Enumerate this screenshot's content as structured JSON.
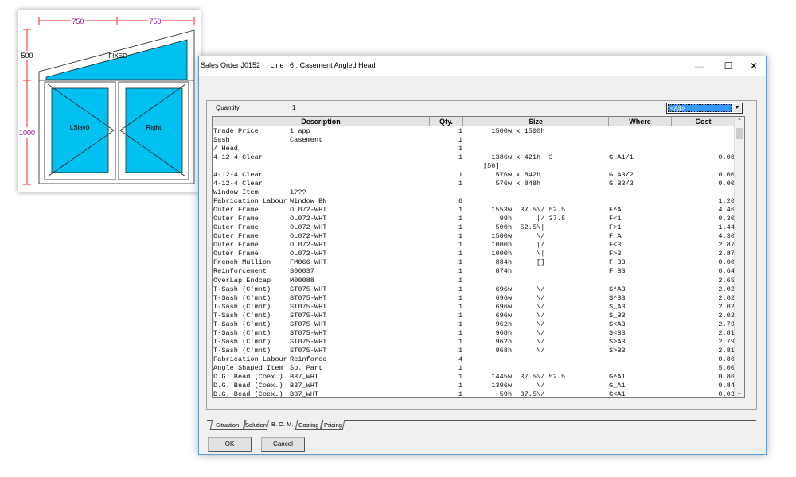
{
  "drawing": {
    "dim_width_left": "750",
    "dim_width_right": "750",
    "dim_height_top": "500",
    "dim_height_bottom": "1000",
    "panel_top": "FIXED",
    "panel_left": "LSlav0",
    "panel_right": "Right",
    "glass_color": "#00c0f0",
    "dim_color": "#ff5050",
    "dim_text_color": "#8b1a8b"
  },
  "window": {
    "title": "Sales Order J0152   : Line   6 : Casement Angled Head",
    "minimize": "—",
    "maximize": "☐",
    "close": "✕"
  },
  "quantity": {
    "label": "Quantity",
    "value": "1"
  },
  "filter": {
    "selected": "<All>"
  },
  "table": {
    "headers": [
      "Description",
      "Qty.",
      "Size",
      "Where",
      "Cost"
    ],
    "rows": [
      {
        "d1": "Trade Price",
        "d2": "1 app",
        "q": "1",
        "s": "  1500w x 1500h",
        "w": "",
        "c": ""
      },
      {
        "d1": "Sash",
        "d2": "Casement",
        "q": "1",
        "s": "",
        "w": "",
        "c": ""
      },
      {
        "d1": "/ Head",
        "d2": "",
        "q": "1",
        "s": "",
        "w": "",
        "c": ""
      },
      {
        "d1": "4-12-4 Clear",
        "d2": "",
        "q": "1",
        "s": "  1386w x 421h  3",
        "w": "G.A1/1",
        "c": "0.00"
      },
      {
        "d1": "",
        "d2": "",
        "q": "",
        "s": "[50]",
        "w": "",
        "c": ""
      },
      {
        "d1": "4-12-4 Clear",
        "d2": "",
        "q": "1",
        "s": "   576w x 842h",
        "w": "G.A3/2",
        "c": "0.00"
      },
      {
        "d1": "4-12-4 Clear",
        "d2": "",
        "q": "1",
        "s": "   576w x 848h",
        "w": "G.B3/3",
        "c": "0.00"
      },
      {
        "d1": "Window Item",
        "d2": "1???",
        "q": "",
        "s": "",
        "w": "",
        "c": ""
      },
      {
        "d1": "Fabrication Labour",
        "d2": "Window BN",
        "q": "6",
        "s": "",
        "w": "",
        "c": "1.20"
      },
      {
        "d1": "Outer Frame",
        "d2": "OL072-WHT",
        "q": "1",
        "s": "  1553w  37.5\\/ 52.5",
        "w": "F^A",
        "c": "4.46"
      },
      {
        "d1": "Outer Frame",
        "d2": "OL072-WHT",
        "q": "1",
        "s": "    99h      |/ 37.5",
        "w": "F<1",
        "c": "0.30"
      },
      {
        "d1": "Outer Frame",
        "d2": "OL072-WHT",
        "q": "1",
        "s": "   500h  52.5\\|",
        "w": "F>1",
        "c": "1.44"
      },
      {
        "d1": "Outer Frame",
        "d2": "OL072-WHT",
        "q": "1",
        "s": "  1500w      \\/",
        "w": "F_A",
        "c": "4.30"
      },
      {
        "d1": "Outer Frame",
        "d2": "OL072-WHT",
        "q": "1",
        "s": "  1000h      |/",
        "w": "F<3",
        "c": "2.87"
      },
      {
        "d1": "Outer Frame",
        "d2": "OL072-WHT",
        "q": "1",
        "s": "  1000h      \\|",
        "w": "F>3",
        "c": "2.87"
      },
      {
        "d1": "French Mullion",
        "d2": "FM066-WHT",
        "q": "1",
        "s": "   884h      []",
        "w": "F|B3",
        "c": "0.00"
      },
      {
        "d1": "Reinforcement",
        "d2": "S00037",
        "q": "1",
        "s": "   874h",
        "w": "F|B3",
        "c": "0.64"
      },
      {
        "d1": "OverLap Endcap",
        "d2": "M00088",
        "q": "1",
        "s": "",
        "w": "",
        "c": "2.65"
      },
      {
        "d1": "T-Sash (C'mnt)",
        "d2": "ST075-WHT",
        "q": "1",
        "s": "   696w      \\/",
        "w": "S^A3",
        "c": "2.02"
      },
      {
        "d1": "T-Sash (C'mnt)",
        "d2": "ST075-WHT",
        "q": "1",
        "s": "   696w      \\/",
        "w": "S^B3",
        "c": "2.02"
      },
      {
        "d1": "T-Sash (C'mnt)",
        "d2": "ST075-WHT",
        "q": "1",
        "s": "   696w      \\/",
        "w": "S_A3",
        "c": "2.02"
      },
      {
        "d1": "T-Sash (C'mnt)",
        "d2": "ST075-WHT",
        "q": "1",
        "s": "   696w      \\/",
        "w": "S_B3",
        "c": "2.02"
      },
      {
        "d1": "T-Sash (C'mnt)",
        "d2": "ST075-WHT",
        "q": "1",
        "s": "   962h      \\/",
        "w": "S<A3",
        "c": "2.79"
      },
      {
        "d1": "T-Sash (C'mnt)",
        "d2": "ST075-WHT",
        "q": "1",
        "s": "   968h      \\/",
        "w": "S<B3",
        "c": "2.81"
      },
      {
        "d1": "T-Sash (C'mnt)",
        "d2": "ST075-WHT",
        "q": "1",
        "s": "   962h      \\/",
        "w": "S>A3",
        "c": "2.79"
      },
      {
        "d1": "T-Sash (C'mnt)",
        "d2": "ST075-WHT",
        "q": "1",
        "s": "   968h      \\/",
        "w": "S>B3",
        "c": "2.81"
      },
      {
        "d1": "Fabrication Labour",
        "d2": "Reinforce",
        "q": "4",
        "s": "",
        "w": "",
        "c": "0.80"
      },
      {
        "d1": "Angle Shaped Item",
        "d2": "Sp. Part",
        "q": "1",
        "s": "",
        "w": "",
        "c": "5.00"
      },
      {
        "d1": "D.G. Bead (Coex.)",
        "d2": "B37_WHT",
        "q": "1",
        "s": "  1445w  37.5\\/ 52.5",
        "w": "G^A1",
        "c": "0.86"
      },
      {
        "d1": "D.G. Bead (Coex.)",
        "d2": "B37_WHT",
        "q": "1",
        "s": "  1396w      \\/",
        "w": "G_A1",
        "c": "0.84"
      },
      {
        "d1": "D.G. Bead (Coex.)",
        "d2": "B37_WHT",
        "q": "1",
        "s": "    59h  37.5\\/",
        "w": "G<A1",
        "c": "0.03"
      }
    ]
  },
  "tabs": [
    "Situation",
    "Solution",
    "B. O. M.",
    "Costing",
    "Pricing"
  ],
  "active_tab": "B. O. M.",
  "buttons": {
    "ok": "OK",
    "cancel": "Cancel"
  }
}
